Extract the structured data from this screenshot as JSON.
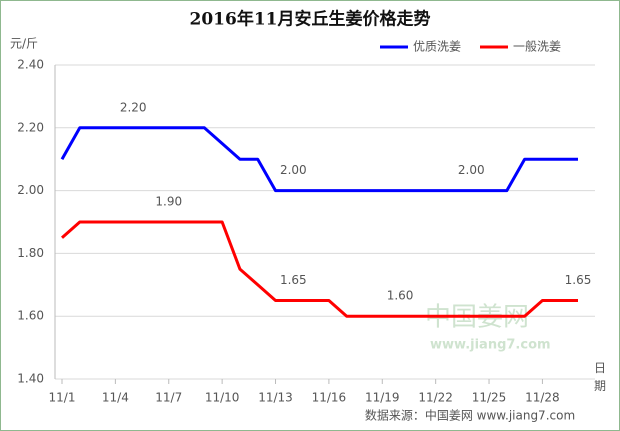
{
  "chart_data": {
    "type": "line",
    "title": "2016年11月安丘生姜价格走势",
    "y_label": "元/斤",
    "x_label": "日期",
    "source": "数据来源：中国姜网 www.jiang7.com",
    "watermark": [
      "中国姜网",
      "www.jiang7.com"
    ],
    "categories": [
      "11/1",
      null,
      null,
      "11/4",
      null,
      null,
      "11/7",
      null,
      null,
      "11/10",
      null,
      null,
      "11/13",
      null,
      null,
      "11/16",
      null,
      null,
      "11/19",
      null,
      null,
      "11/22",
      null,
      null,
      "11/25",
      null,
      null,
      "11/28",
      null,
      null
    ],
    "series": [
      {
        "name": "优质洗姜",
        "color": "#0000ff",
        "values": [
          2.1,
          2.2,
          2.2,
          2.2,
          2.2,
          2.2,
          2.2,
          2.2,
          2.2,
          2.15,
          2.1,
          2.1,
          2.0,
          2.0,
          2.0,
          2.0,
          2.0,
          2.0,
          2.0,
          2.0,
          2.0,
          2.0,
          2.0,
          2.0,
          2.0,
          2.0,
          2.1,
          2.1,
          2.1,
          2.1
        ],
        "value_labels": [
          null,
          null,
          null,
          null,
          "2.20",
          null,
          null,
          null,
          null,
          null,
          null,
          null,
          null,
          "2.00",
          null,
          null,
          null,
          null,
          null,
          null,
          null,
          null,
          null,
          "2.00",
          null,
          null,
          null,
          null,
          null,
          null
        ]
      },
      {
        "name": "一般洗姜",
        "color": "#ff0000",
        "values": [
          1.85,
          1.9,
          1.9,
          1.9,
          1.9,
          1.9,
          1.9,
          1.9,
          1.9,
          1.9,
          1.75,
          1.7,
          1.65,
          1.65,
          1.65,
          1.65,
          1.6,
          1.6,
          1.6,
          1.6,
          1.6,
          1.6,
          1.6,
          1.6,
          1.6,
          1.6,
          1.6,
          1.65,
          1.65,
          1.65
        ],
        "value_labels": [
          null,
          null,
          null,
          null,
          null,
          null,
          "1.90",
          null,
          null,
          null,
          null,
          null,
          null,
          "1.65",
          null,
          null,
          null,
          null,
          null,
          "1.60",
          null,
          null,
          null,
          null,
          null,
          null,
          null,
          null,
          null,
          "1.65"
        ]
      }
    ],
    "ylim": [
      1.4,
      2.4
    ],
    "yticks": [
      {
        "value": 1.4,
        "label": "1.40"
      },
      {
        "value": 1.6,
        "label": "1.60"
      },
      {
        "value": 1.8,
        "label": "1.80"
      },
      {
        "value": 2.0,
        "label": "2.00"
      },
      {
        "value": 2.2,
        "label": "2.20"
      },
      {
        "value": 2.4,
        "label": "2.40"
      }
    ],
    "grid": true,
    "legend": "top-right"
  }
}
